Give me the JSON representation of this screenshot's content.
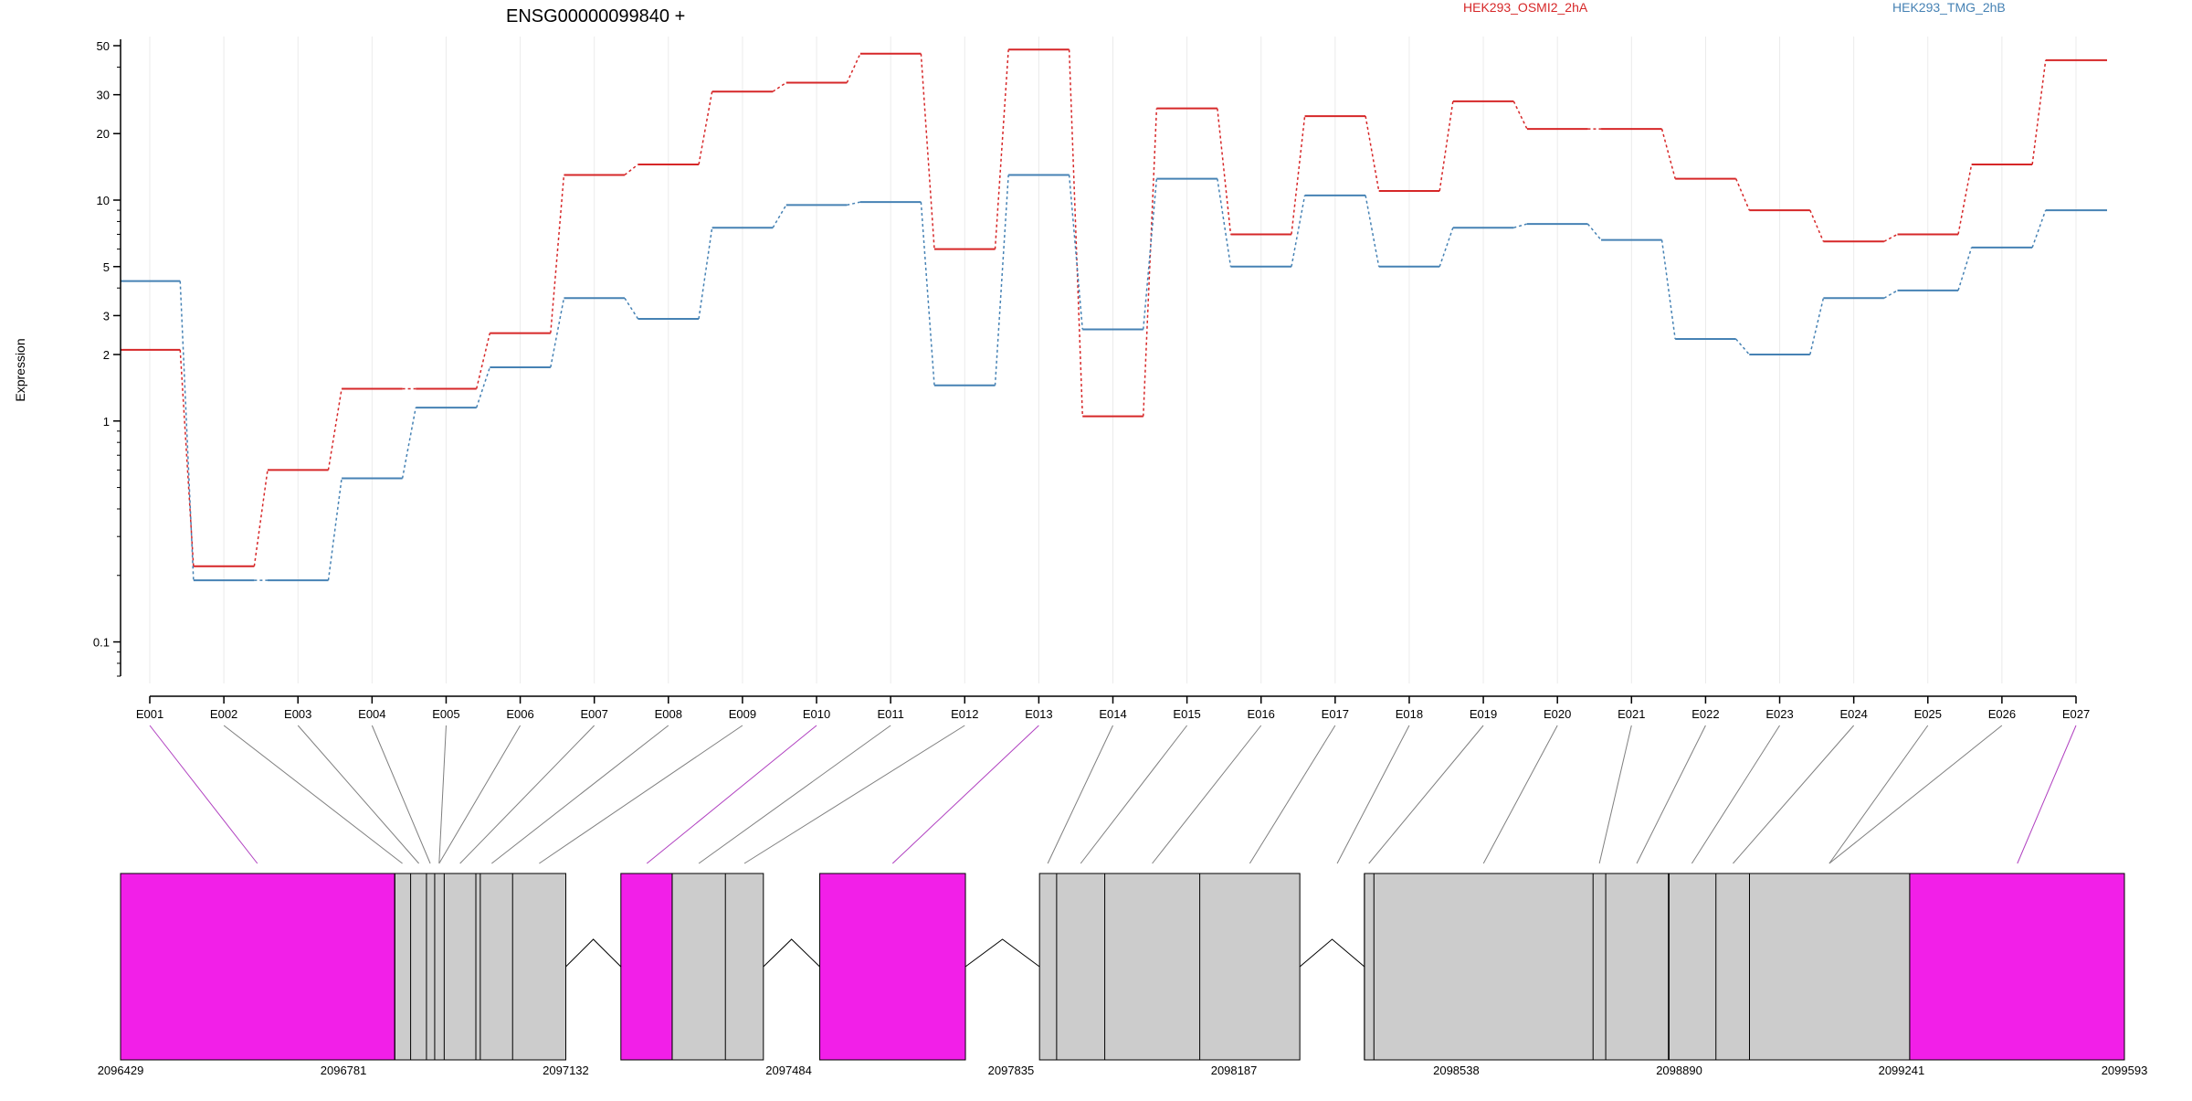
{
  "chart_data": {
    "type": "line",
    "title": "ENSG00000099840 +",
    "ylabel": "Expression",
    "xlabel": "",
    "y_scale": "log",
    "ylim": [
      0.07,
      55
    ],
    "y_ticks": [
      {
        "value": 0.1,
        "label": "0.1"
      },
      {
        "value": 1,
        "label": "1"
      },
      {
        "value": 2,
        "label": "2"
      },
      {
        "value": 3,
        "label": "3"
      },
      {
        "value": 5,
        "label": "5"
      },
      {
        "value": 10,
        "label": "10"
      },
      {
        "value": 20,
        "label": "20"
      },
      {
        "value": 30,
        "label": "30"
      },
      {
        "value": 50,
        "label": "50"
      }
    ],
    "grid": true,
    "legend_position": "top",
    "categories": [
      "E001",
      "E002",
      "E003",
      "E004",
      "E005",
      "E006",
      "E007",
      "E008",
      "E009",
      "E010",
      "E011",
      "E012",
      "E013",
      "E014",
      "E015",
      "E016",
      "E017",
      "E018",
      "E019",
      "E020",
      "E021",
      "E022",
      "E023",
      "E024",
      "E025",
      "E026",
      "E027"
    ],
    "series": [
      {
        "name": "HEK293_OSMI2_2hA",
        "color": "#d62728",
        "values": [
          2.1,
          0.22,
          0.6,
          1.4,
          1.4,
          2.5,
          13,
          14.5,
          31,
          34,
          46,
          6,
          48,
          1.05,
          26,
          7,
          24,
          11,
          28,
          21,
          21,
          12.5,
          9,
          6.5,
          7,
          14.5,
          43
        ]
      },
      {
        "name": "HEK293_TMG_2hB",
        "color": "#4682b4",
        "values": [
          4.3,
          0.19,
          0.19,
          0.55,
          1.15,
          1.75,
          3.6,
          2.9,
          7.5,
          9.5,
          9.8,
          1.45,
          13,
          2.6,
          12.5,
          5,
          10.5,
          5,
          7.5,
          7.8,
          6.6,
          2.35,
          2,
          3.6,
          3.9,
          6.1,
          9
        ]
      }
    ],
    "genomic_ticks": [
      {
        "value": 2096429,
        "label": "2096429"
      },
      {
        "value": 2096781,
        "label": "2096781"
      },
      {
        "value": 2097132,
        "label": "2097132"
      },
      {
        "value": 2097484,
        "label": "2097484"
      },
      {
        "value": 2097835,
        "label": "2097835"
      },
      {
        "value": 2098187,
        "label": "2098187"
      },
      {
        "value": 2098538,
        "label": "2098538"
      },
      {
        "value": 2098890,
        "label": "2098890"
      },
      {
        "value": 2099241,
        "label": "2099241"
      },
      {
        "value": 2099593,
        "label": "2099593"
      }
    ],
    "gene_model": {
      "exon_colors": {
        "highlight": "#f21fe8",
        "normal": "#cccccc"
      },
      "exon_blocks": [
        {
          "start": 2096429,
          "end": 2096862,
          "type": "highlight"
        },
        {
          "start": 2096862,
          "end": 2097132,
          "type": "normal"
        },
        {
          "start": 2097219,
          "end": 2097300,
          "type": "highlight"
        },
        {
          "start": 2097300,
          "end": 2097444,
          "type": "normal"
        },
        {
          "start": 2097533,
          "end": 2097763,
          "type": "highlight"
        },
        {
          "start": 2097880,
          "end": 2098291,
          "type": "normal"
        },
        {
          "start": 2098393,
          "end": 2098874,
          "type": "normal"
        },
        {
          "start": 2098874,
          "end": 2099254,
          "type": "normal"
        },
        {
          "start": 2099254,
          "end": 2099593,
          "type": "highlight"
        }
      ],
      "exon_boundaries": [
        2096862,
        2096887,
        2096912,
        2096925,
        2096940,
        2096990,
        2096997,
        2097048,
        2097300,
        2097384,
        2097907,
        2097983,
        2098133,
        2098393,
        2098408,
        2098754,
        2098774,
        2098873,
        2098948,
        2099001
      ],
      "introns": [
        {
          "start": 2097132,
          "end": 2097219
        },
        {
          "start": 2097444,
          "end": 2097533
        },
        {
          "start": 2097763,
          "end": 2097880
        },
        {
          "start": 2098291,
          "end": 2098393
        }
      ],
      "exon_centers": [
        {
          "pos": 2096645,
          "type": "highlight"
        },
        {
          "pos": 2096874,
          "type": "normal"
        },
        {
          "pos": 2096900,
          "type": "normal"
        },
        {
          "pos": 2096918,
          "type": "normal"
        },
        {
          "pos": 2096932,
          "type": "normal"
        },
        {
          "pos": 2096965,
          "type": "normal"
        },
        {
          "pos": 2097015,
          "type": "normal"
        },
        {
          "pos": 2097090,
          "type": "normal"
        },
        {
          "pos": 2097260,
          "type": "highlight"
        },
        {
          "pos": 2097342,
          "type": "normal"
        },
        {
          "pos": 2097414,
          "type": "normal"
        },
        {
          "pos": 2097648,
          "type": "highlight"
        },
        {
          "pos": 2097893,
          "type": "normal"
        },
        {
          "pos": 2097945,
          "type": "normal"
        },
        {
          "pos": 2098058,
          "type": "normal"
        },
        {
          "pos": 2098212,
          "type": "normal"
        },
        {
          "pos": 2098350,
          "type": "normal"
        },
        {
          "pos": 2098400,
          "type": "normal"
        },
        {
          "pos": 2098581,
          "type": "normal"
        },
        {
          "pos": 2098764,
          "type": "normal"
        },
        {
          "pos": 2098823,
          "type": "normal"
        },
        {
          "pos": 2098910,
          "type": "normal"
        },
        {
          "pos": 2098975,
          "type": "normal"
        },
        {
          "pos": 2099127,
          "type": "normal"
        },
        {
          "pos": 2099424,
          "type": "highlight"
        }
      ],
      "connectors": [
        {
          "exon": 0,
          "block": 0
        },
        {
          "exon": 1,
          "block": 1
        },
        {
          "exon": 2,
          "block": 2
        },
        {
          "exon": 3,
          "block": 3
        },
        {
          "exon": 4,
          "block": 4
        },
        {
          "exon": 5,
          "block": 4
        },
        {
          "exon": 6,
          "block": 5
        },
        {
          "exon": 7,
          "block": 6
        },
        {
          "exon": 8,
          "block": 7
        },
        {
          "exon": 9,
          "block": 8
        },
        {
          "exon": 10,
          "block": 9
        },
        {
          "exon": 11,
          "block": 10
        },
        {
          "exon": 12,
          "block": 11
        },
        {
          "exon": 13,
          "block": 12
        },
        {
          "exon": 14,
          "block": 13
        },
        {
          "exon": 15,
          "block": 14
        },
        {
          "exon": 16,
          "block": 15
        },
        {
          "exon": 17,
          "block": 16
        },
        {
          "exon": 18,
          "block": 17
        },
        {
          "exon": 19,
          "block": 18
        },
        {
          "exon": 20,
          "block": 19
        },
        {
          "exon": 21,
          "block": 20
        },
        {
          "exon": 22,
          "block": 21
        },
        {
          "exon": 23,
          "block": 22
        },
        {
          "exon": 24,
          "block": 23
        },
        {
          "exon": 25,
          "block": 23
        },
        {
          "exon": 26,
          "block": 24
        }
      ]
    }
  }
}
